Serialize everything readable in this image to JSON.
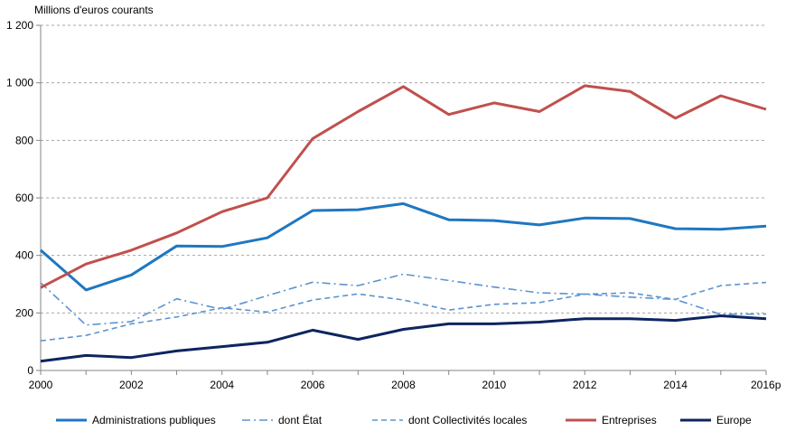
{
  "chart_data": {
    "type": "line",
    "ylabel": "Millions d'euros   courants",
    "ylim": [
      0,
      1200
    ],
    "yticks": [
      0,
      200,
      400,
      600,
      800,
      1000,
      1200
    ],
    "ytick_labels": [
      "0",
      "200",
      "400",
      "600",
      "800",
      "1 000",
      "1 200"
    ],
    "x": [
      "2000",
      "2001",
      "2002",
      "2003",
      "2004",
      "2005",
      "2006",
      "2007",
      "2008",
      "2009",
      "2010",
      "2011",
      "2012",
      "2013",
      "2014",
      "2015",
      "2016p"
    ],
    "xtick_labels": [
      "2000",
      "",
      "2002",
      "",
      "2004",
      "",
      "2006",
      "",
      "2008",
      "",
      "2010",
      "",
      "2012",
      "",
      "2014",
      "",
      "2016p"
    ],
    "grid": "horizontal dashed",
    "legend_position": "bottom",
    "series": [
      {
        "name": "Administrations publiques",
        "color": "#1f77c0",
        "style": "solid",
        "values": [
          418,
          280,
          332,
          433,
          431,
          461,
          556,
          559,
          580,
          524,
          521,
          506,
          530,
          528,
          493,
          491,
          502
        ]
      },
      {
        "name": "dont État",
        "color": "#5b93cf",
        "style": "dashdot",
        "values": [
          305,
          158,
          170,
          249,
          212,
          260,
          307,
          295,
          335,
          313,
          290,
          270,
          265,
          255,
          247,
          195,
          196
        ]
      },
      {
        "name": "dont Collectivités locales",
        "color": "#5b93cf",
        "style": "dash",
        "values": [
          103,
          122,
          162,
          186,
          218,
          203,
          245,
          266,
          245,
          210,
          230,
          236,
          265,
          270,
          247,
          295,
          306
        ]
      },
      {
        "name": "Entreprises",
        "color": "#c0504d",
        "style": "solid",
        "values": [
          288,
          370,
          418,
          478,
          552,
          600,
          806,
          900,
          987,
          890,
          930,
          900,
          990,
          970,
          877,
          955,
          908
        ]
      },
      {
        "name": "Europe",
        "color": "#0d2560",
        "style": "solid",
        "values": [
          32,
          52,
          45,
          68,
          83,
          98,
          140,
          108,
          143,
          162,
          162,
          168,
          180,
          180,
          174,
          190,
          180
        ]
      }
    ]
  }
}
